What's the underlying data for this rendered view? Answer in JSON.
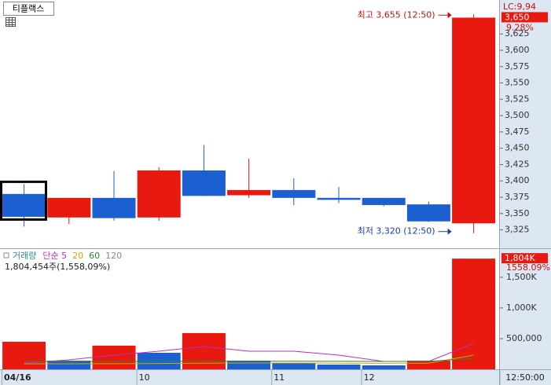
{
  "title": "티플랙스",
  "chart_data": [
    {
      "type": "candlestick",
      "categories": [
        "04/16",
        null,
        null,
        "10",
        null,
        null,
        "11",
        null,
        "12",
        null,
        null
      ],
      "open": [
        3380,
        3344,
        3374,
        3344,
        3416,
        3378,
        3386,
        3374,
        3374,
        3364,
        3335
      ],
      "high": [
        3395,
        3374,
        3415,
        3421,
        3455,
        3434,
        3404,
        3391,
        3374,
        3368,
        3655
      ],
      "low": [
        3330,
        3334,
        3339,
        3339,
        3377,
        3374,
        3363,
        3366,
        3361,
        3337,
        3320
      ],
      "close": [
        3345,
        3374,
        3343,
        3416,
        3377,
        3386,
        3374,
        3371,
        3363,
        3338,
        3650
      ],
      "up_color": "#e8190e",
      "down_color": "#1b5fd0",
      "ylim": [
        3298,
        3677
      ],
      "yticks": [
        {
          "value": 3325,
          "label": "3,325"
        },
        {
          "value": 3350,
          "label": "3,350"
        },
        {
          "value": 3375,
          "label": "3,375"
        },
        {
          "value": 3400,
          "label": "3,400"
        },
        {
          "value": 3425,
          "label": "3,425"
        },
        {
          "value": 3450,
          "label": "3,450"
        },
        {
          "value": 3475,
          "label": "3,475"
        },
        {
          "value": 3500,
          "label": "3,500"
        },
        {
          "value": 3525,
          "label": "3,525"
        },
        {
          "value": 3550,
          "label": "3,550"
        },
        {
          "value": 3575,
          "label": "3,575"
        },
        {
          "value": 3600,
          "label": "3,600"
        },
        {
          "value": 3625,
          "label": "3,625"
        }
      ],
      "high_annotation": "최고 3,655 (12:50)",
      "low_annotation": "최저 3,320 (12:50)",
      "lc_label": "LC:9,94",
      "last_price": {
        "value": 3650,
        "label": "3,650"
      },
      "change_label": "9.28%",
      "current_time": "12:50:00"
    },
    {
      "type": "volume",
      "values": [
        449000,
        141000,
        385000,
        269000,
        590000,
        141000,
        103000,
        77000,
        64000,
        141000,
        1804454
      ],
      "colors": [
        "#e8190e",
        "#1b5fd0",
        "#e8190e",
        "#1b5fd0",
        "#e8190e",
        "#1b5fd0",
        "#1b5fd0",
        "#1b5fd0",
        "#1b5fd0",
        "#e8190e",
        "#e8190e"
      ],
      "legend_title": "거래량",
      "legend_title_color": "#2a8c8c",
      "series": [
        {
          "name": "단순 5",
          "color": "#c02cc0",
          "values": [
            103000,
            154000,
            231000,
            295000,
            372000,
            295000,
            295000,
            231000,
            128000,
            128000,
            423000
          ]
        },
        {
          "name": "20",
          "color": "#e0a000",
          "values": [
            90000,
            90000,
            92000,
            95000,
            100000,
            102000,
            102000,
            100000,
            98000,
            100000,
            231000
          ]
        },
        {
          "name": "60",
          "color": "#2a8a2a",
          "values": [
            128000,
            128000,
            128000,
            130000,
            132000,
            132000,
            132000,
            130000,
            128000,
            128000,
            180000
          ]
        },
        {
          "name": "120",
          "color": "#888888",
          "values": [
            null,
            null,
            null,
            null,
            null,
            null,
            null,
            null,
            null,
            null,
            null
          ]
        }
      ],
      "info": "1,804,454주(1,558,09%)",
      "last_volume_label": "1,804K",
      "change_label": "1558.09%",
      "ylim": [
        0,
        1960000
      ],
      "yticks": [
        {
          "value": 500000,
          "label": "500,000"
        },
        {
          "value": 1000000,
          "label": "1,000K"
        },
        {
          "value": 1500000,
          "label": "1,500K"
        }
      ]
    }
  ]
}
